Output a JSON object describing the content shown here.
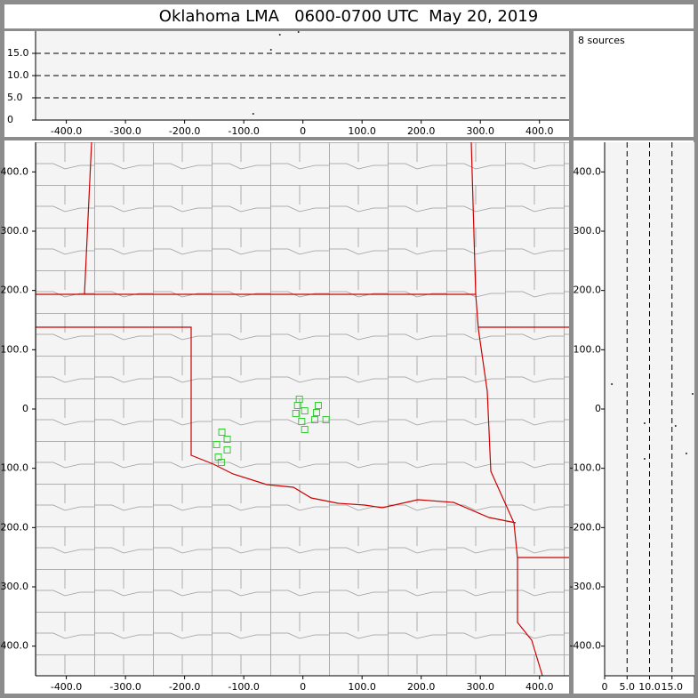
{
  "title": "Oklahoma LMA   0600-0700 UTC  May 20, 2019",
  "annotation": "8 sources",
  "chart_data": [
    {
      "type": "scatter",
      "color": "#222222",
      "marker": "dot",
      "x": [
        -84,
        -39,
        -7.5,
        -54
      ],
      "y": [
        1.4,
        19.2,
        19.8,
        15.8
      ],
      "xlim": [
        -452,
        450
      ],
      "ylim": [
        0,
        20
      ],
      "xticks": [
        {
          "value": -400,
          "label": "-400.0"
        },
        {
          "value": -300,
          "label": "-300.0"
        },
        {
          "value": -200,
          "label": "-200.0"
        },
        {
          "value": -100,
          "label": "-100.0"
        },
        0,
        {
          "value": 100,
          "label": "100.0"
        },
        {
          "value": 200,
          "label": "200.0"
        },
        {
          "value": 300,
          "label": "300.0"
        },
        {
          "value": 400,
          "label": "400.0"
        }
      ],
      "yticks": [
        0,
        {
          "value": 5,
          "label": "5.0"
        },
        {
          "value": 10,
          "label": "10.0"
        },
        {
          "value": 15,
          "label": "15.0"
        }
      ],
      "grid": true
    },
    {
      "type": "scatter",
      "color": "#33cc33",
      "marker": "square",
      "x": [
        -6,
        -9,
        3,
        -12,
        26,
        23,
        39,
        20,
        -2,
        3,
        -137,
        -128,
        -146,
        -128,
        -143,
        -138
      ],
      "y": [
        16.5,
        6,
        -3,
        -7.5,
        6,
        -6,
        -18,
        -18,
        -21,
        -34.5,
        -39,
        -51,
        -60,
        -69,
        -81,
        -90
      ],
      "xlim": [
        -452,
        450
      ],
      "ylim": [
        -450,
        450
      ],
      "xticks": [
        {
          "value": -400,
          "label": "-400.0"
        },
        {
          "value": -300,
          "label": "-300.0"
        },
        {
          "value": -200,
          "label": "-200.0"
        },
        {
          "value": -100,
          "label": "-100.0"
        },
        0,
        {
          "value": 100,
          "label": "100.0"
        },
        {
          "value": 200,
          "label": "200.0"
        },
        {
          "value": 300,
          "label": "300.0"
        },
        {
          "value": 400,
          "label": "400.0"
        }
      ],
      "yticks": [
        {
          "value": -400,
          "label": "-400.0"
        },
        {
          "value": -300,
          "label": "-300.0"
        },
        {
          "value": -200,
          "label": "-200.0"
        },
        {
          "value": -100,
          "label": "-100.0"
        },
        0,
        {
          "value": 100,
          "label": "100.0"
        },
        {
          "value": 200,
          "label": "200.0"
        },
        {
          "value": 300,
          "label": "300.0"
        },
        {
          "value": 400,
          "label": "400.0"
        }
      ],
      "grid": false
    },
    {
      "type": "scatter",
      "color": "#222222",
      "marker": "dot",
      "x": [
        1.6,
        19.6,
        8.9,
        15.8,
        18.2,
        8.9
      ],
      "y": [
        42,
        25.5,
        -24,
        -28.5,
        -75,
        -84
      ],
      "xlim": [
        0,
        20
      ],
      "ylim": [
        -450,
        450
      ],
      "xticks": [
        0,
        {
          "value": 5,
          "label": "5.0"
        },
        {
          "value": 10,
          "label": "10.0"
        },
        {
          "value": 15,
          "label": "15.0"
        }
      ],
      "yticks": [
        {
          "value": -400,
          "label": "-400.0"
        },
        {
          "value": -300,
          "label": "-300.0"
        },
        {
          "value": -200,
          "label": "-200.0"
        },
        {
          "value": -100,
          "label": "-100.0"
        },
        0,
        {
          "value": 100,
          "label": "100.0"
        },
        {
          "value": 200,
          "label": "200.0"
        },
        {
          "value": 300,
          "label": "300.0"
        },
        {
          "value": 400,
          "label": "400.0"
        }
      ],
      "grid": true
    }
  ]
}
